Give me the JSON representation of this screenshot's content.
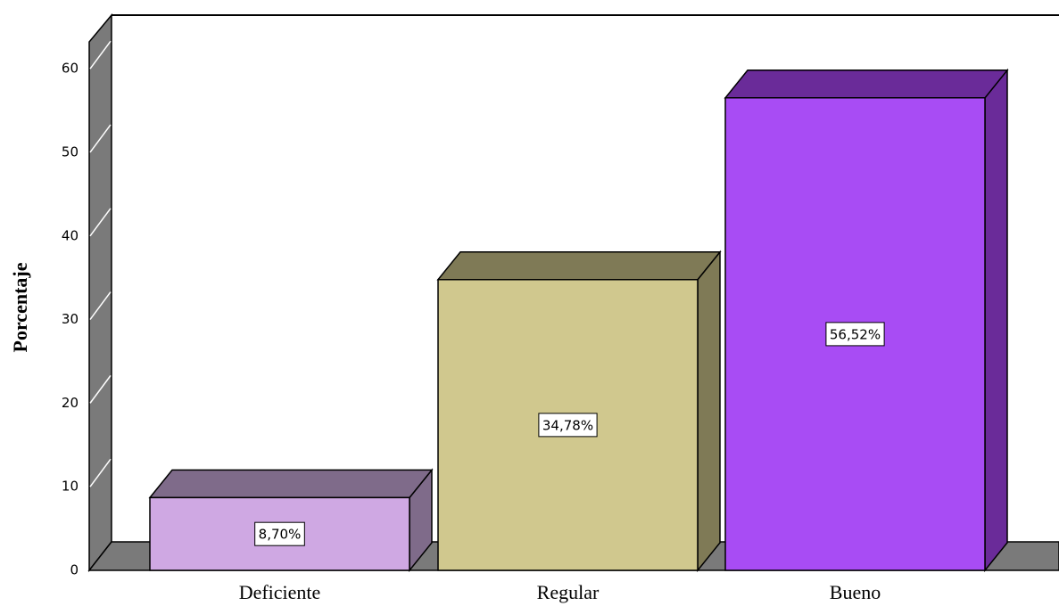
{
  "chart_data": {
    "type": "bar3d",
    "ylabel": "Porcentaje",
    "categories": [
      "Deficiente",
      "Regular",
      "Bueno"
    ],
    "values": [
      8.7,
      34.78,
      56.52
    ],
    "value_labels": [
      "8,70%",
      "34,78%",
      "56,52%"
    ],
    "colors": [
      "#cfa8e3",
      "#d0c88e",
      "#a84cf4"
    ],
    "side_colors": [
      "#7f6b8a",
      "#7f7a56",
      "#6a2b99"
    ],
    "ylim": [
      0,
      63
    ],
    "yticks": [
      0,
      10,
      20,
      30,
      40,
      50,
      60
    ]
  }
}
